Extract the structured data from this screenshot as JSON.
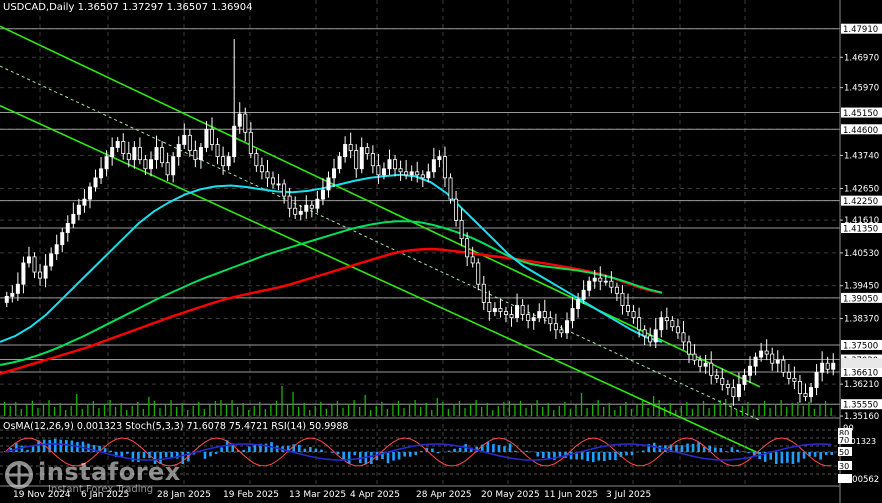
{
  "header": {
    "symbol": "USDCAD,Daily",
    "ohlc": "1.36507 1.37297 1.36507 1.36904"
  },
  "indicators": {
    "label": "OsMA(12,26,9) 0.001323 Stoch(5,3,3) 71.6078 75.4721 RSI(14) 50.9988"
  },
  "logo": {
    "brand": "instaforex",
    "tagline": "Instant Forex Trading"
  },
  "colors": {
    "background": "#000000",
    "grid": "#3a3a3a",
    "candle": "#ffffff",
    "ma_red": "#ff0000",
    "ma_green": "#00e05a",
    "ma_cyan": "#18e0f0",
    "channel": "#2ee80f",
    "osma": "#1ea0ff",
    "stoch_main": "#ff4a4a",
    "rsi": "#2a2acc",
    "volume": "#19b400",
    "price_label_bg": "#ffffff"
  },
  "chart_data": {
    "type": "candlestick",
    "symbol": "USDCAD",
    "timeframe": "Daily",
    "ylim": [
      1.35162,
      1.4846
    ],
    "x_labels": [
      "19 Nov 2024",
      "6 Jan 2025",
      "28 Jan 2025",
      "19 Feb 2025",
      "13 Mar 2025",
      "4 Apr 2025",
      "28 Apr 2025",
      "20 May 2025",
      "11 Jun 2025",
      "3 Jul 2025"
    ],
    "price_ticks": [
      "1.47910",
      "1.46970",
      "1.45970",
      "1.45150",
      "1.44600",
      "1.43740",
      "1.42650",
      "1.42250",
      "1.41610",
      "1.41350",
      "1.40530",
      "1.39450",
      "1.39050",
      "1.38370",
      "1.37500",
      "1.37020",
      "1.36610",
      "1.36210",
      "1.35550",
      "1.35160"
    ],
    "levels": [
      1.4791,
      1.4515,
      1.446,
      1.4225,
      1.4135,
      1.3905,
      1.375,
      1.3702,
      1.3661,
      1.3555
    ],
    "current_price": 1.36904,
    "close_series": [
      1.391,
      1.392,
      1.395,
      1.402,
      1.404,
      1.399,
      1.397,
      1.401,
      1.405,
      1.408,
      1.412,
      1.415,
      1.418,
      1.421,
      1.423,
      1.427,
      1.43,
      1.433,
      1.437,
      1.44,
      1.442,
      1.438,
      1.436,
      1.44,
      1.436,
      1.433,
      1.436,
      1.44,
      1.435,
      1.431,
      1.437,
      1.441,
      1.444,
      1.439,
      1.436,
      1.44,
      1.446,
      1.441,
      1.437,
      1.434,
      1.437,
      1.447,
      1.451,
      1.445,
      1.438,
      1.434,
      1.432,
      1.43,
      1.428,
      1.428,
      1.424,
      1.42,
      1.418,
      1.419,
      1.421,
      1.42,
      1.423,
      1.426,
      1.43,
      1.433,
      1.437,
      1.441,
      1.439,
      1.433,
      1.44,
      1.438,
      1.434,
      1.431,
      1.433,
      1.436,
      1.433,
      1.432,
      1.431,
      1.432,
      1.431,
      1.43,
      1.432,
      1.436,
      1.437,
      1.43,
      1.423,
      1.416,
      1.41,
      1.404,
      1.402,
      1.395,
      1.389,
      1.386,
      1.387,
      1.386,
      1.385,
      1.384,
      1.388,
      1.385,
      1.383,
      1.384,
      1.386,
      1.384,
      1.382,
      1.38,
      1.379,
      1.383,
      1.387,
      1.39,
      1.393,
      1.396,
      1.397,
      1.396,
      1.396,
      1.394,
      1.392,
      1.388,
      1.386,
      1.384,
      1.38,
      1.378,
      1.376,
      1.38,
      1.384,
      1.383,
      1.381,
      1.379,
      1.376,
      1.372,
      1.37,
      1.368,
      1.369,
      1.365,
      1.364,
      1.362,
      1.361,
      1.358,
      1.362,
      1.365,
      1.368,
      1.371,
      1.373,
      1.372,
      1.369,
      1.37,
      1.366,
      1.364,
      1.363,
      1.359,
      1.358,
      1.361,
      1.366,
      1.369,
      1.367,
      1.369
    ],
    "series": [
      {
        "name": "MA red",
        "color": "#ff0000",
        "values": [
          1.3655,
          1.3665,
          1.3675,
          1.3685,
          1.3695,
          1.3705,
          1.3715,
          1.3725,
          1.3735,
          1.3745,
          1.3758,
          1.377,
          1.3782,
          1.3794,
          1.3806,
          1.3818,
          1.383,
          1.3842,
          1.3853,
          1.3864,
          1.3875,
          1.3886,
          1.3896,
          1.3905,
          1.3913,
          1.392,
          1.3927,
          1.3934,
          1.3941,
          1.395,
          1.396,
          1.397,
          1.398,
          1.399,
          1.4,
          1.401,
          1.402,
          1.403,
          1.404,
          1.405,
          1.4057,
          1.4062,
          1.4065,
          1.4066,
          1.4064,
          1.406,
          1.4056,
          1.4052,
          1.4047,
          1.4043,
          1.4039,
          1.4035,
          1.403,
          1.4025,
          1.402,
          1.4015,
          1.4009,
          1.4003,
          1.3997,
          1.399,
          1.3982,
          1.3972,
          1.396,
          1.3948,
          1.3937,
          1.3928,
          1.3922
        ]
      },
      {
        "name": "MA green",
        "color": "#00e05a",
        "values": [
          1.3684,
          1.3692,
          1.3702,
          1.3714,
          1.3728,
          1.3744,
          1.3762,
          1.378,
          1.38,
          1.382,
          1.384,
          1.386,
          1.388,
          1.39,
          1.3918,
          1.3936,
          1.3954,
          1.397,
          1.3985,
          1.4,
          1.4015,
          1.403,
          1.4045,
          1.4058,
          1.407,
          1.4082,
          1.4094,
          1.4106,
          1.4118,
          1.413,
          1.414,
          1.4148,
          1.4154,
          1.4157,
          1.4157,
          1.4153,
          1.4145,
          1.4134,
          1.4121,
          1.4106,
          1.4088,
          1.4068,
          1.4047,
          1.403,
          1.4018,
          1.401,
          1.4005,
          1.4,
          1.3995,
          1.3988,
          1.398,
          1.397,
          1.3958,
          1.3944,
          1.3932,
          1.3922
        ]
      },
      {
        "name": "MA cyan",
        "color": "#18e0f0",
        "values": [
          1.376,
          1.378,
          1.381,
          1.385,
          1.39,
          1.395,
          1.4,
          1.405,
          1.41,
          1.415,
          1.419,
          1.422,
          1.4245,
          1.4262,
          1.4272,
          1.4275,
          1.427,
          1.4262,
          1.4255,
          1.4253,
          1.4257,
          1.4266,
          1.4278,
          1.429,
          1.43,
          1.4306,
          1.431,
          1.4305,
          1.4285,
          1.425,
          1.42,
          1.415,
          1.41,
          1.405,
          1.401,
          1.398,
          1.395,
          1.392,
          1.389,
          1.386,
          1.383,
          1.38,
          1.3775,
          1.376
        ]
      }
    ],
    "channel_lines": [
      {
        "name": "upper",
        "from": [
          "start",
          1.4799
        ],
        "to": [
          "end",
          1.3612
        ]
      },
      {
        "name": "lower",
        "from": [
          "start",
          1.4538
        ],
        "to": [
          "end",
          1.3392
        ]
      },
      {
        "name": "middle dashed",
        "from": [
          "start",
          1.4668
        ],
        "to": [
          "end",
          1.3502
        ]
      }
    ]
  }
}
